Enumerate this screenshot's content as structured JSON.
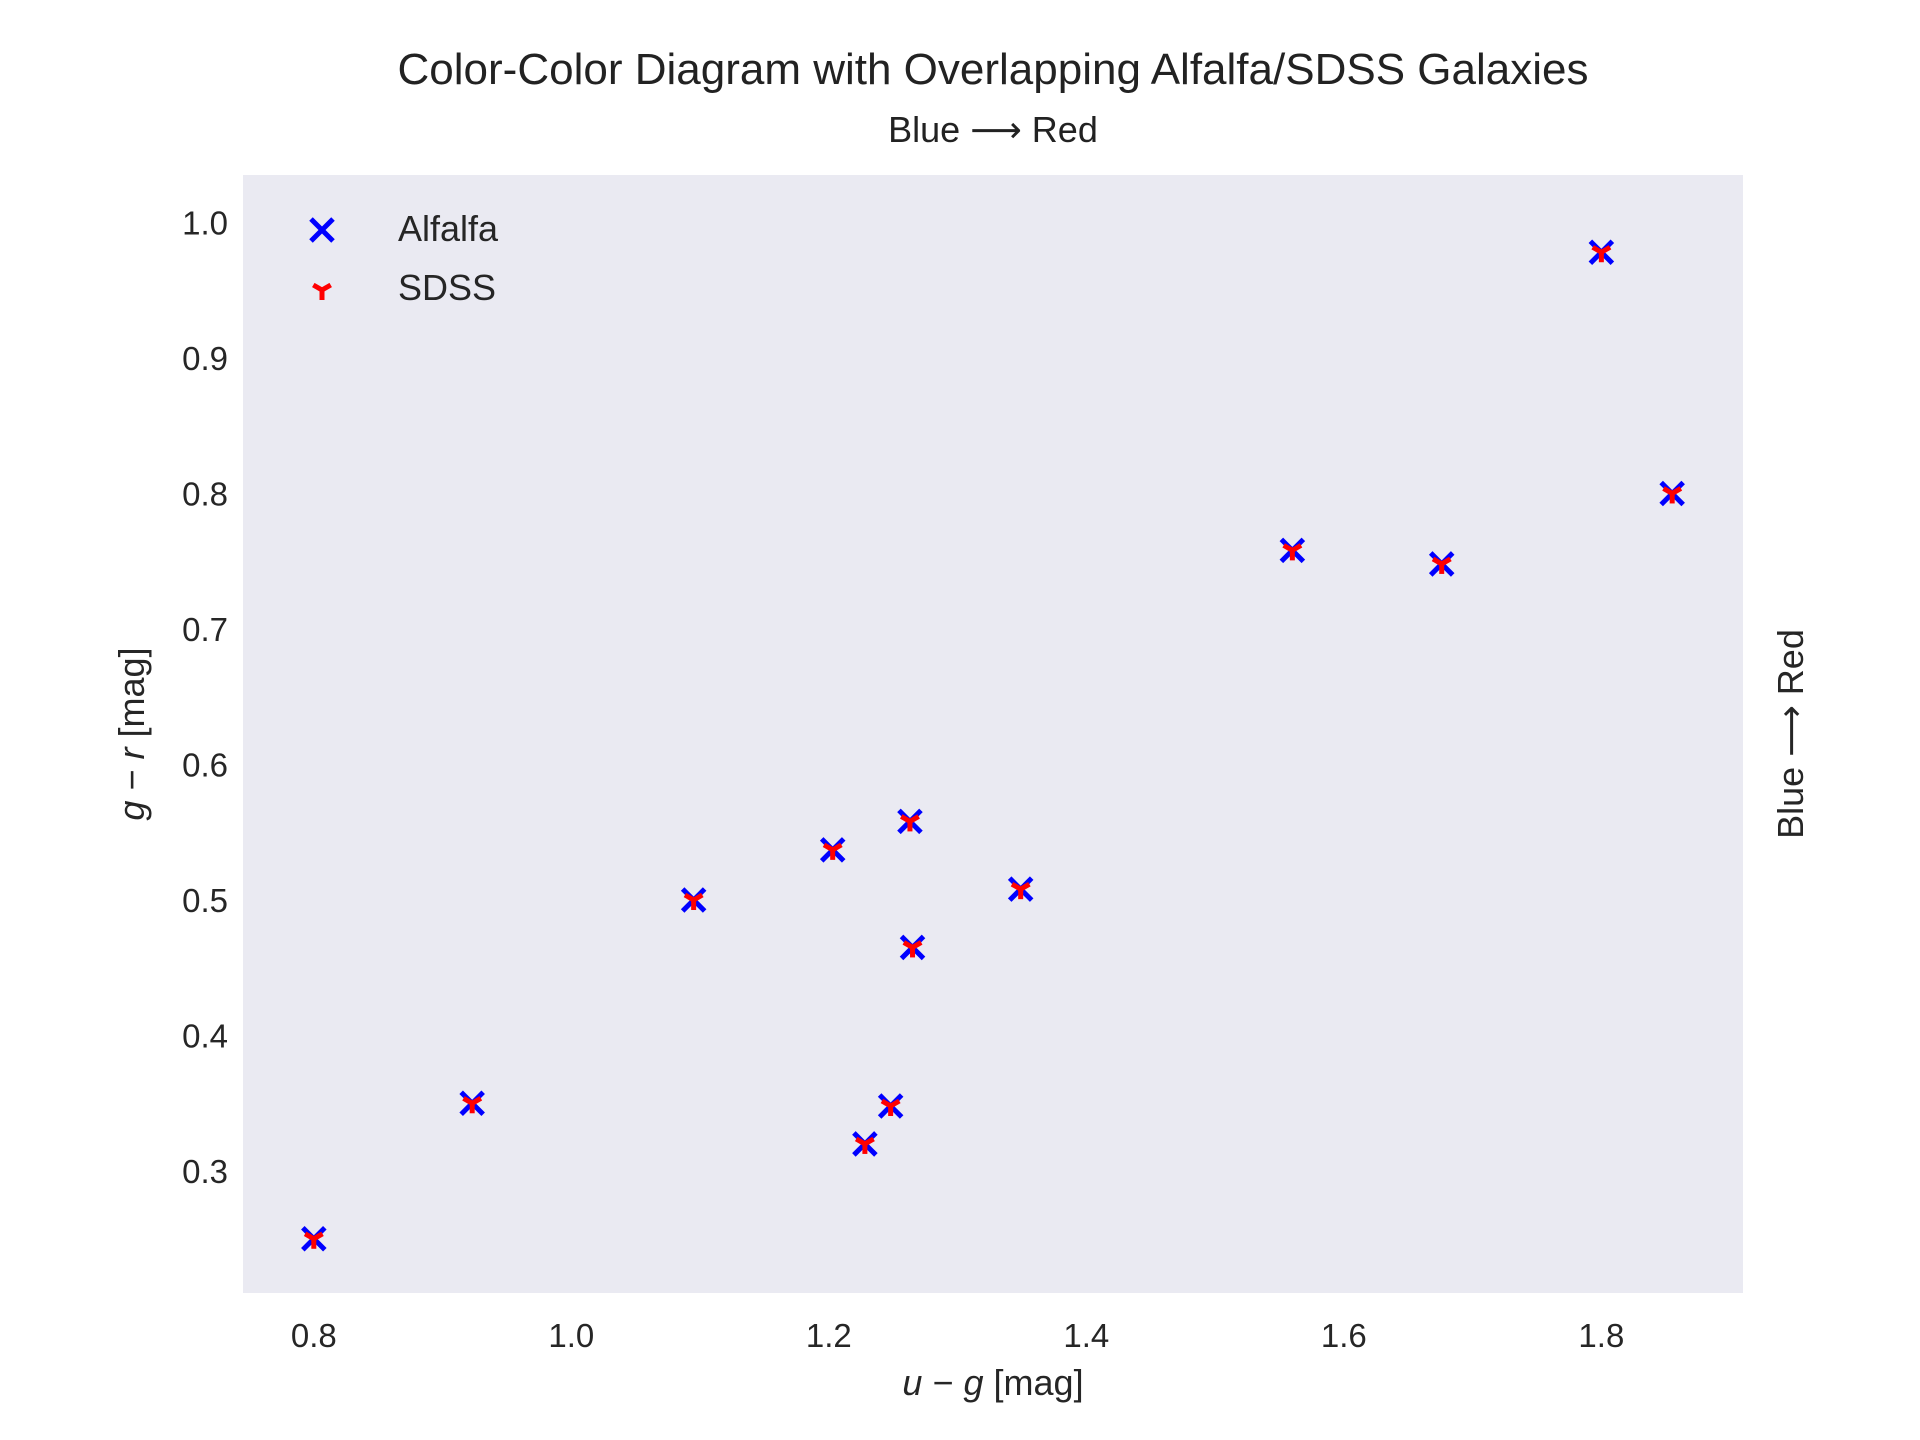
{
  "chart_data": {
    "type": "scatter",
    "title": "Color-Color Diagram with Overlapping Alfalfa/SDSS Galaxies",
    "subtitle": "Blue ⟶ Red",
    "right_label": "Blue ⟶ Red",
    "xlabel_var1": "u",
    "xlabel_var2": "g",
    "xlabel_unit": "[mag]",
    "ylabel_var1": "g",
    "ylabel_var2": "r",
    "ylabel_unit": "[mag]",
    "minus_sign": "−",
    "xlim": [
      0.745,
      1.91
    ],
    "ylim": [
      0.21,
      1.035
    ],
    "xticks": [
      0.8,
      1.0,
      1.2,
      1.4,
      1.6,
      1.8
    ],
    "xtick_labels": [
      "0.8",
      "1.0",
      "1.2",
      "1.4",
      "1.6",
      "1.8"
    ],
    "yticks": [
      0.3,
      0.4,
      0.5,
      0.6,
      0.7,
      0.8,
      0.9,
      1.0
    ],
    "ytick_labels": [
      "0.3",
      "0.4",
      "0.5",
      "0.6",
      "0.7",
      "0.8",
      "0.9",
      "1.0"
    ],
    "grid": false,
    "background": "#eaeaf2",
    "legend_position": "upper-left",
    "series": [
      {
        "name": "Alfalfa",
        "marker": "x",
        "color": "#0000ff",
        "points": [
          [
            0.8,
            0.25
          ],
          [
            0.923,
            0.35
          ],
          [
            1.095,
            0.5
          ],
          [
            1.203,
            0.537
          ],
          [
            1.263,
            0.558
          ],
          [
            1.265,
            0.465
          ],
          [
            1.228,
            0.32
          ],
          [
            1.248,
            0.348
          ],
          [
            1.349,
            0.508
          ],
          [
            1.56,
            0.758
          ],
          [
            1.676,
            0.748
          ],
          [
            1.8,
            0.978
          ],
          [
            1.855,
            0.8
          ]
        ]
      },
      {
        "name": "SDSS",
        "marker": "tri_down",
        "color": "#ff0000",
        "points": [
          [
            0.8,
            0.25
          ],
          [
            0.923,
            0.35
          ],
          [
            1.095,
            0.5
          ],
          [
            1.203,
            0.537
          ],
          [
            1.263,
            0.558
          ],
          [
            1.265,
            0.465
          ],
          [
            1.228,
            0.32
          ],
          [
            1.248,
            0.348
          ],
          [
            1.349,
            0.508
          ],
          [
            1.56,
            0.758
          ],
          [
            1.676,
            0.748
          ],
          [
            1.8,
            0.978
          ],
          [
            1.855,
            0.8
          ]
        ]
      }
    ]
  }
}
